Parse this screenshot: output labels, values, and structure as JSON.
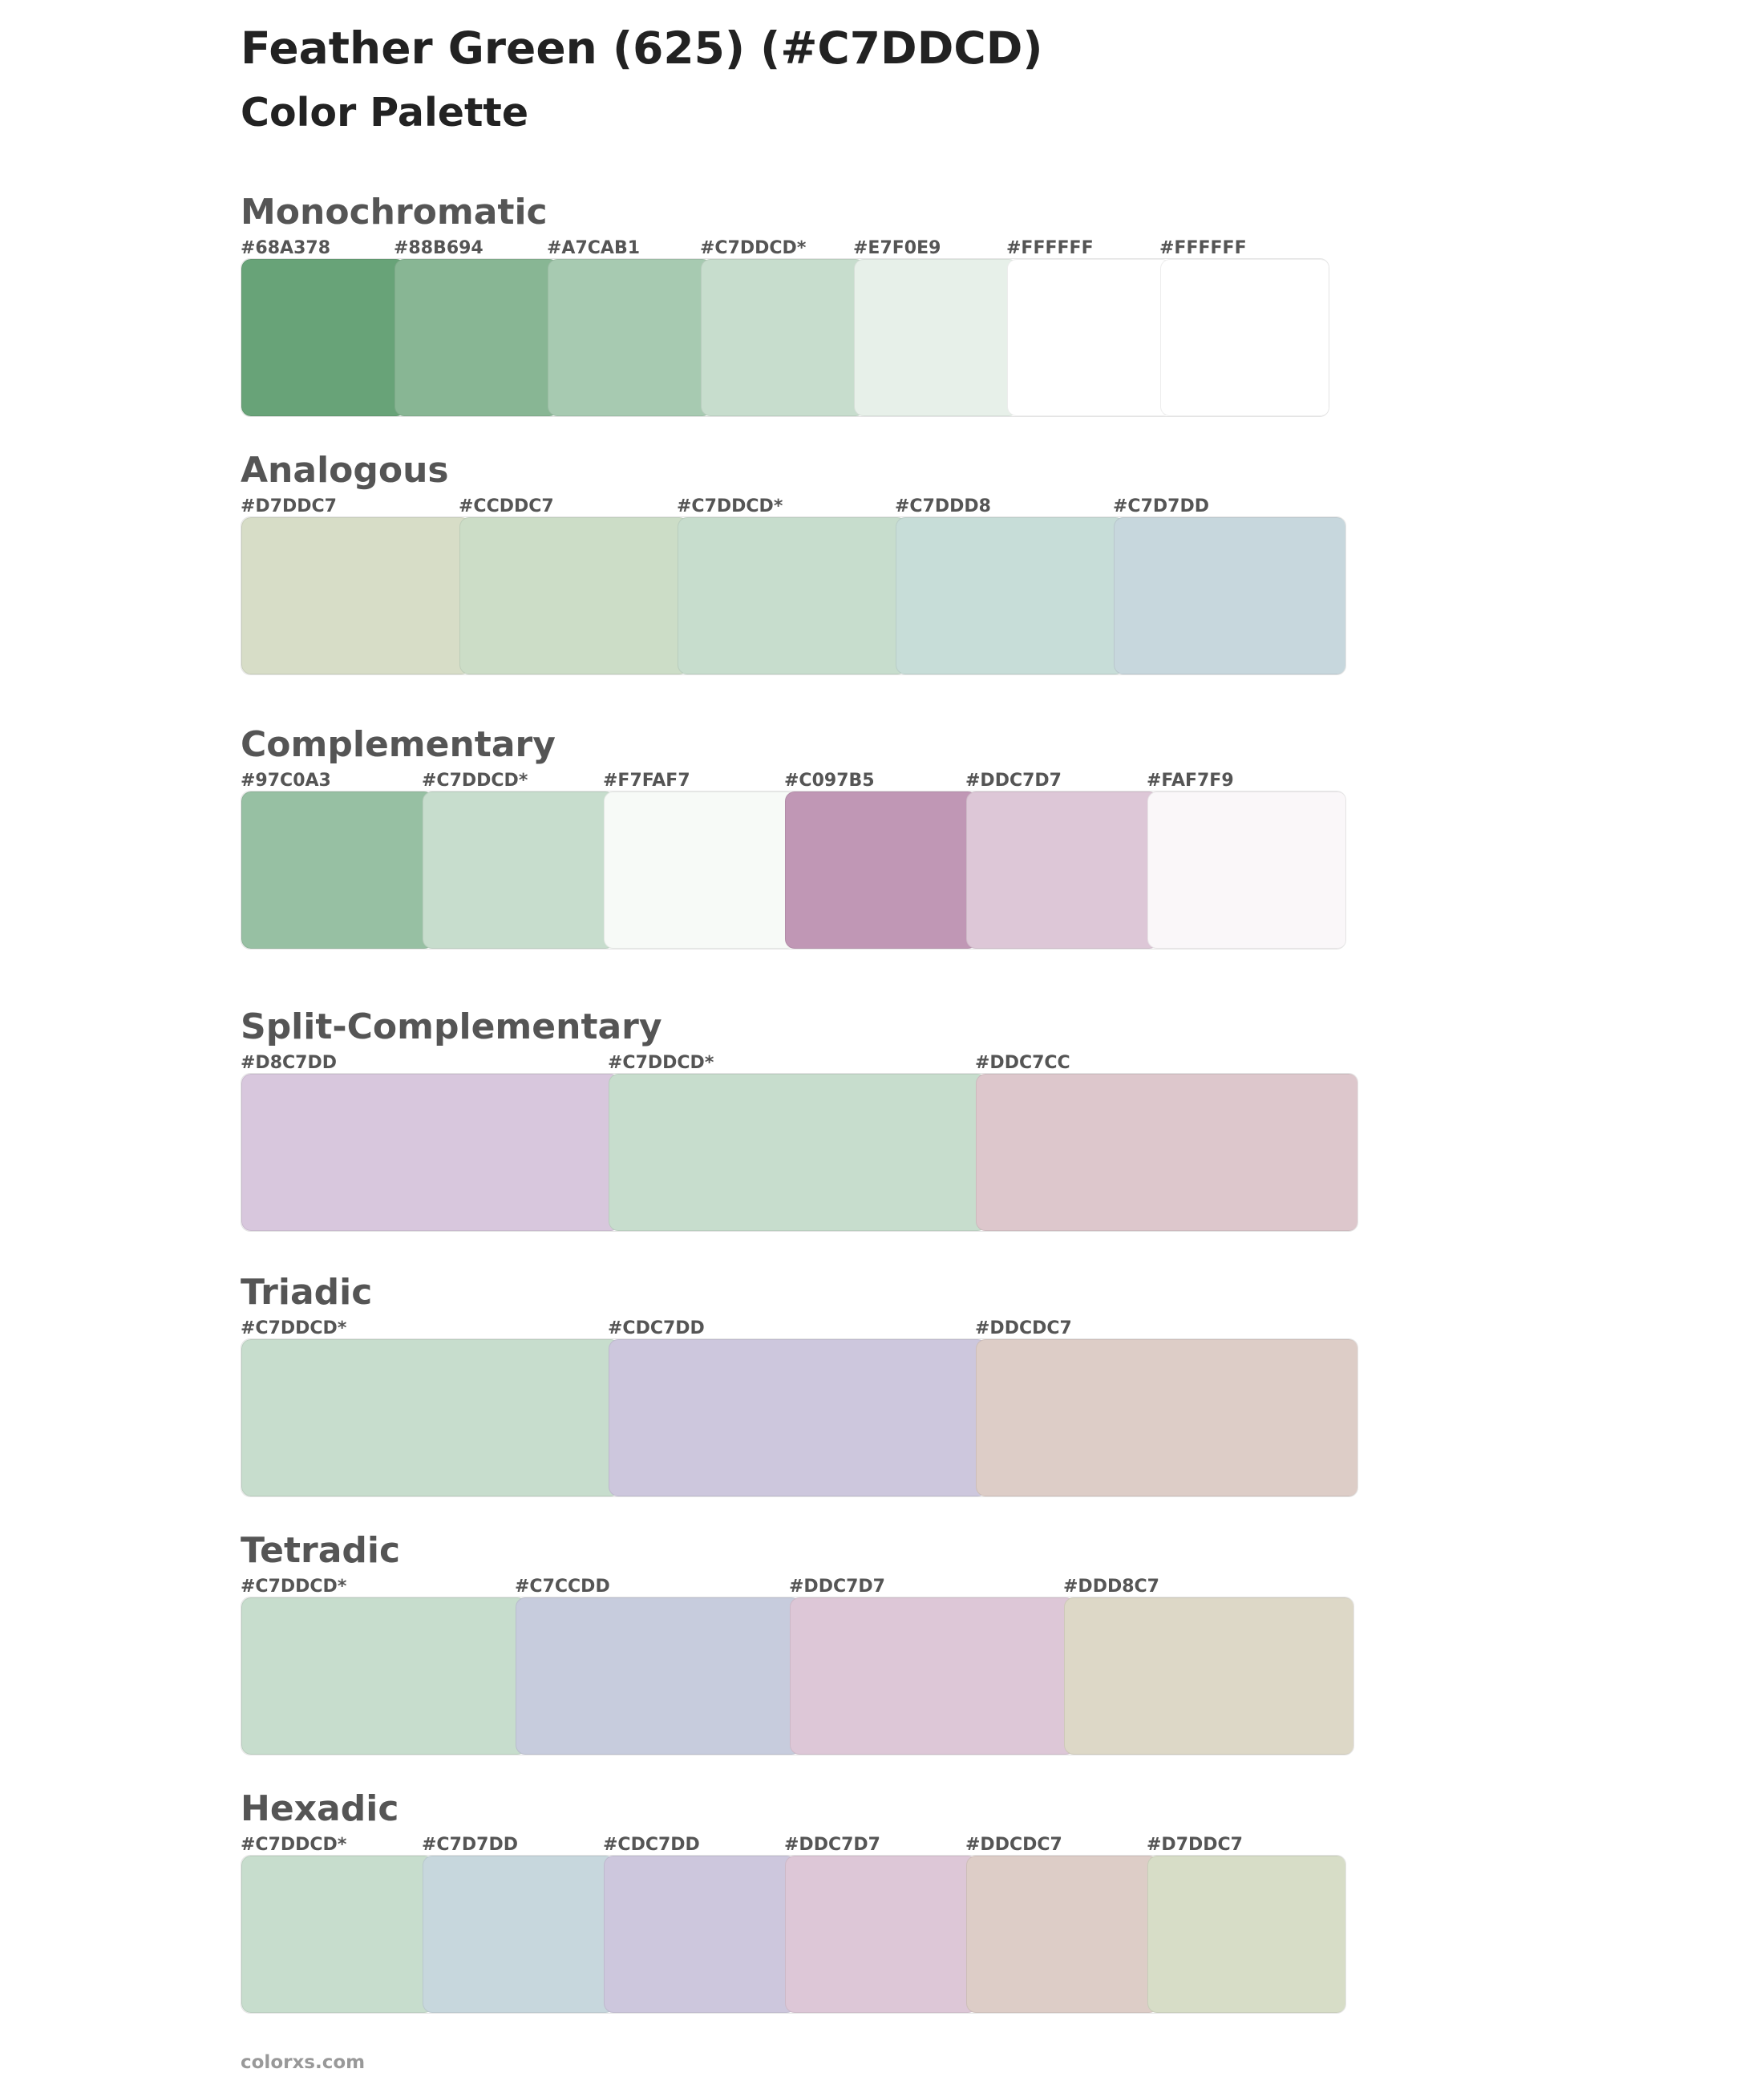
{
  "title": "Feather Green (625) (#C7DDCD)",
  "subtitle": "Color Palette",
  "footer": "colorxs.com",
  "sections": [
    {
      "name": "Monochromatic",
      "swatches": [
        {
          "label": "#68A378",
          "color": "#68A378"
        },
        {
          "label": "#88B694",
          "color": "#88B694"
        },
        {
          "label": "#A7CAB1",
          "color": "#A7CAB1"
        },
        {
          "label": "#C7DDCD*",
          "color": "#C7DDCD"
        },
        {
          "label": "#E7F0E9",
          "color": "#E7F0E9"
        },
        {
          "label": "#FFFFFF",
          "color": "#FFFFFF"
        },
        {
          "label": "#FFFFFF",
          "color": "#FFFFFF"
        }
      ]
    },
    {
      "name": "Analogous",
      "swatches": [
        {
          "label": "#D7DDC7",
          "color": "#D7DDC7"
        },
        {
          "label": "#CCDDC7",
          "color": "#CCDDC7"
        },
        {
          "label": "#C7DDCD*",
          "color": "#C7DDCD"
        },
        {
          "label": "#C7DDD8",
          "color": "#C7DDD8"
        },
        {
          "label": "#C7D7DD",
          "color": "#C7D7DD"
        }
      ]
    },
    {
      "name": "Complementary",
      "swatches": [
        {
          "label": "#97C0A3",
          "color": "#97C0A3"
        },
        {
          "label": "#C7DDCD*",
          "color": "#C7DDCD"
        },
        {
          "label": "#F7FAF7",
          "color": "#F7FAF7"
        },
        {
          "label": "#C097B5",
          "color": "#C097B5"
        },
        {
          "label": "#DDC7D7",
          "color": "#DDC7D7"
        },
        {
          "label": "#FAF7F9",
          "color": "#FAF7F9"
        }
      ]
    },
    {
      "name": "Split-Complementary",
      "swatches": [
        {
          "label": "#D8C7DD",
          "color": "#D8C7DD"
        },
        {
          "label": "#C7DDCD*",
          "color": "#C7DDCD"
        },
        {
          "label": "#DDC7CC",
          "color": "#DDC7CC"
        }
      ]
    },
    {
      "name": "Triadic",
      "swatches": [
        {
          "label": "#C7DDCD*",
          "color": "#C7DDCD"
        },
        {
          "label": "#CDC7DD",
          "color": "#CDC7DD"
        },
        {
          "label": "#DDCDC7",
          "color": "#DDCDC7"
        }
      ]
    },
    {
      "name": "Tetradic",
      "swatches": [
        {
          "label": "#C7DDCD*",
          "color": "#C7DDCD"
        },
        {
          "label": "#C7CCDD",
          "color": "#C7CCDD"
        },
        {
          "label": "#DDC7D7",
          "color": "#DDC7D7"
        },
        {
          "label": "#DDD8C7",
          "color": "#DDD8C7"
        }
      ]
    },
    {
      "name": "Hexadic",
      "swatches": [
        {
          "label": "#C7DDCD*",
          "color": "#C7DDCD"
        },
        {
          "label": "#C7D7DD",
          "color": "#C7D7DD"
        },
        {
          "label": "#CDC7DD",
          "color": "#CDC7DD"
        },
        {
          "label": "#DDC7D7",
          "color": "#DDC7D7"
        },
        {
          "label": "#DDCDC7",
          "color": "#DDCDC7"
        },
        {
          "label": "#D7DDC7",
          "color": "#D7DDC7"
        }
      ]
    }
  ]
}
